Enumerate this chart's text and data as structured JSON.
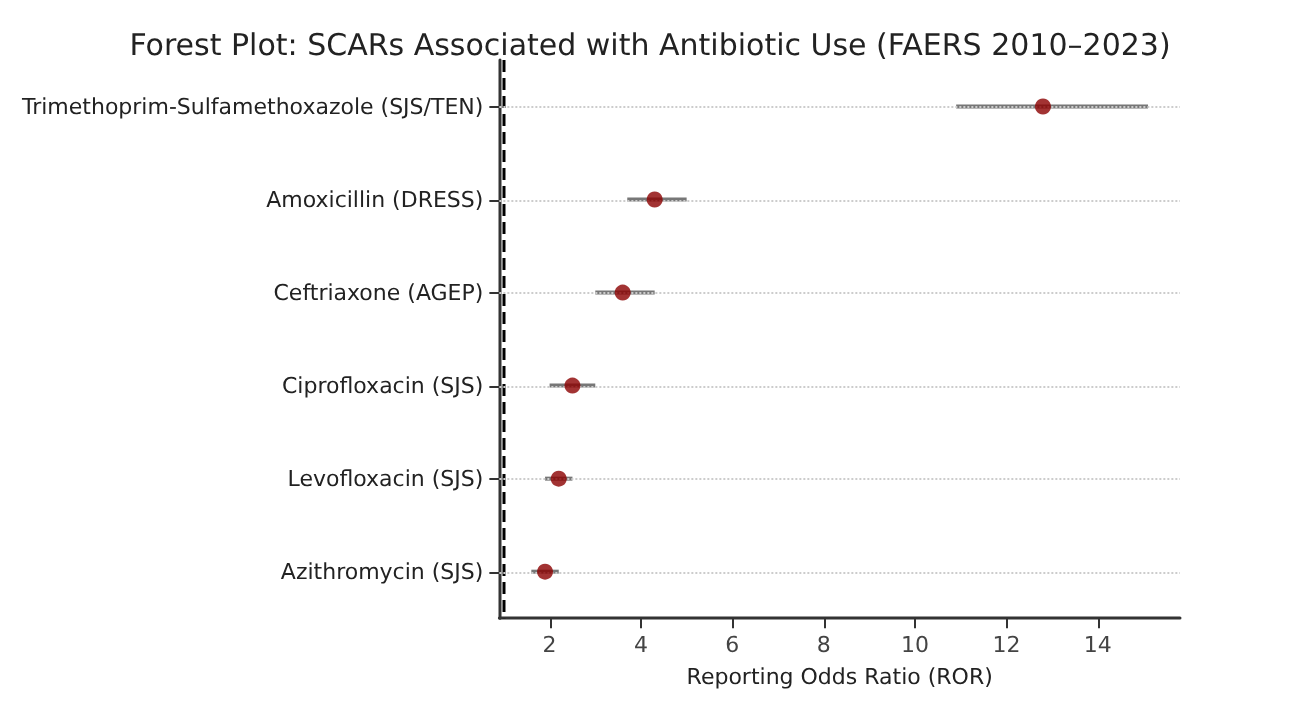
{
  "chart_data": {
    "type": "scatter",
    "title": "Forest Plot: SCARs Associated with Antibiotic Use (FAERS 2010–2023)",
    "xlabel": "Reporting Odds Ratio (ROR)",
    "categories": [
      "Trimethoprim-Sulfamethoxazole (SJS/TEN)",
      "Amoxicillin (DRESS)",
      "Ceftriaxone (AGEP)",
      "Ciprofloxacin (SJS)",
      "Levofloxacin (SJS)",
      "Azithromycin (SJS)"
    ],
    "values": [
      12.8,
      4.3,
      3.6,
      2.5,
      2.2,
      1.9
    ],
    "errors": [
      [
        10.9,
        15.1
      ],
      [
        3.7,
        5.0
      ],
      [
        3.0,
        4.3
      ],
      [
        2.0,
        3.0
      ],
      [
        1.9,
        2.5
      ],
      [
        1.6,
        2.2
      ]
    ],
    "color": "#8b0000",
    "marker": "circle",
    "orientation": "horizontal",
    "xlim": [
      0.9,
      15.8
    ],
    "xticks": [
      2,
      4,
      6,
      8,
      10,
      12,
      14
    ],
    "ref_lines": [
      {
        "axis": "x",
        "value": 1,
        "color": "#000000",
        "line_style": "dashed"
      }
    ],
    "grid": "y"
  }
}
